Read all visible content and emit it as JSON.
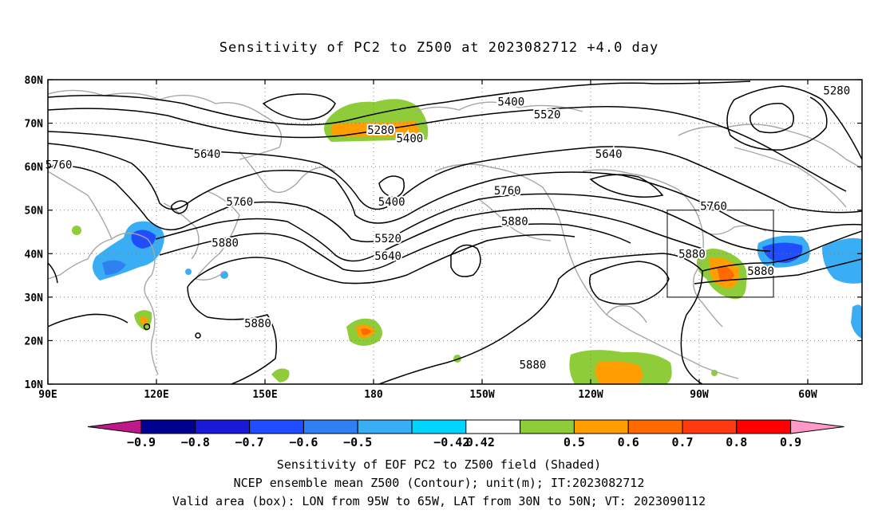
{
  "title": "Sensitivity of PC2 to Z500 at 2023082712 +4.0 day",
  "lat_ticks": [
    "80N",
    "70N",
    "60N",
    "50N",
    "40N",
    "30N",
    "20N",
    "10N"
  ],
  "lon_ticks": [
    "90E",
    "120E",
    "150E",
    "180",
    "150W",
    "120W",
    "90W",
    "60W"
  ],
  "contours": [
    {
      "label": "5280",
      "lon": -52,
      "lat": 77.5
    },
    {
      "label": "5280",
      "lon": -178,
      "lat": 68.5
    },
    {
      "label": "5400",
      "lon": -170,
      "lat": 66.5
    },
    {
      "label": "5400",
      "lon": -142,
      "lat": 75
    },
    {
      "label": "5520",
      "lon": -132,
      "lat": 72
    },
    {
      "label": "5640",
      "lon": -115,
      "lat": 63
    },
    {
      "label": "5640",
      "lon": 134,
      "lat": 63
    },
    {
      "label": "5760",
      "lon": -86,
      "lat": 51
    },
    {
      "label": "5760",
      "lon": 93,
      "lat": 60.5
    },
    {
      "label": "5760",
      "lon": 143,
      "lat": 52
    },
    {
      "label": "5760",
      "lon": -143,
      "lat": 54.5
    },
    {
      "label": "5880",
      "lon": -141,
      "lat": 47.5
    },
    {
      "label": "5880",
      "lon": -92,
      "lat": 40
    },
    {
      "label": "5880",
      "lon": -73,
      "lat": 36
    },
    {
      "label": "5880",
      "lon": 139,
      "lat": 42.5
    },
    {
      "label": "5880",
      "lon": 148,
      "lat": 24
    },
    {
      "label": "5880",
      "lon": -136,
      "lat": 14.5
    },
    {
      "label": "5400",
      "lon": -175,
      "lat": 52
    },
    {
      "label": "5520",
      "lon": -176,
      "lat": 43.5
    },
    {
      "label": "5640",
      "lon": -176,
      "lat": 39.5
    }
  ],
  "colorbar": {
    "labels": [
      "−0.9",
      "−0.8",
      "−0.7",
      "−0.6",
      "−0.5",
      "−0.42",
      "0.42",
      "0.5",
      "0.6",
      "0.7",
      "0.8",
      "0.9"
    ],
    "colors": [
      "#00008f",
      "#1a1ad6",
      "#1f4dff",
      "#2f80f0",
      "#3aaef5",
      "#00d5ff",
      "#ffffff",
      "#8fcc3a",
      "#ff9e00",
      "#ff6a00",
      "#ff3a10",
      "#ff0000"
    ],
    "low_color": "#c0188a",
    "high_color": "#ff9ac8"
  },
  "captions": [
    "Sensitivity of EOF PC2 to Z500 field (Shaded)",
    "NCEP ensemble mean Z500 (Contour); unit(m); IT:2023082712",
    "Valid area (box): LON from 95W to 65W, LAT from 30N to 50N; VT: 2023090112"
  ]
}
